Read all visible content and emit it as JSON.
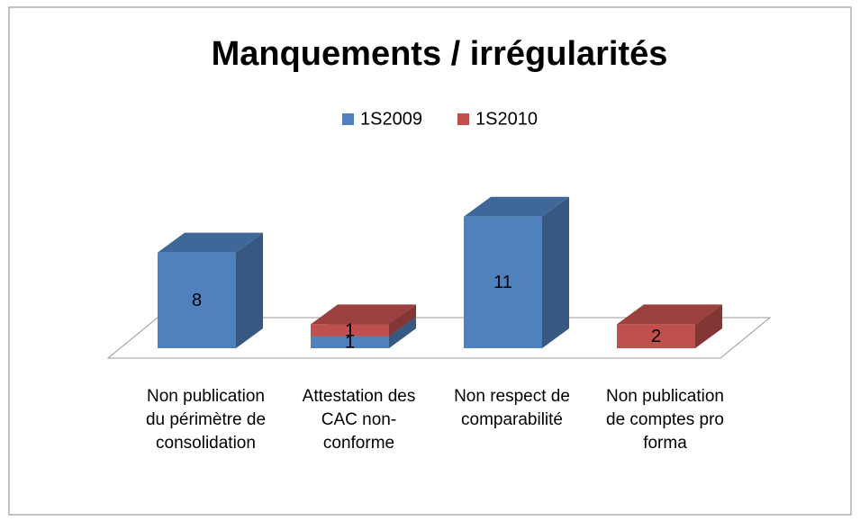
{
  "chart_data": {
    "type": "bar3d_stacked",
    "title": "Manquements / irrégularités",
    "categories": [
      "Non publication du périmètre de consolidation",
      "Attestation des CAC non-conforme",
      "Non respect de comparabilité",
      "Non publication de comptes pro forma"
    ],
    "series": [
      {
        "name": "1S2009",
        "color": "#4f81bd",
        "values": [
          8,
          1,
          11,
          null
        ]
      },
      {
        "name": "1S2010",
        "color": "#c0504d",
        "values": [
          null,
          1,
          null,
          2
        ]
      }
    ],
    "legend": "top"
  }
}
